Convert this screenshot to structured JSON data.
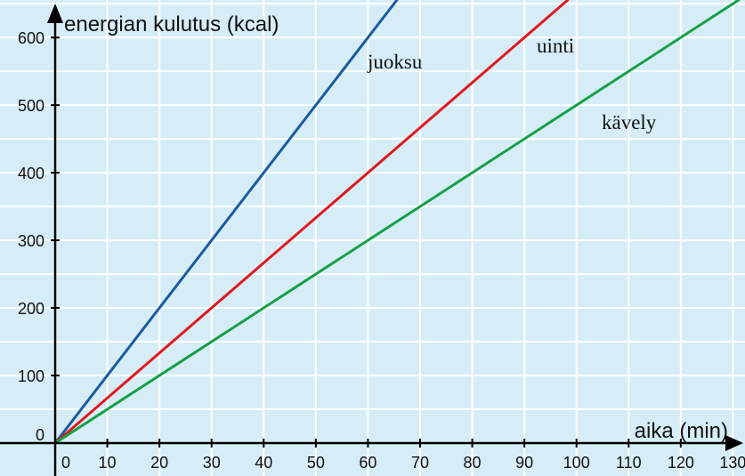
{
  "chart_data": {
    "type": "line",
    "xlabel": "aika (min)",
    "ylabel": "energian kulutus (kcal)",
    "xlim": [
      0,
      130
    ],
    "ylim": [
      0,
      600
    ],
    "x_ticks": [
      0,
      10,
      20,
      30,
      40,
      50,
      60,
      70,
      80,
      90,
      100,
      110,
      120,
      130
    ],
    "y_ticks": [
      0,
      100,
      200,
      300,
      400,
      500,
      600
    ],
    "grid": true,
    "series": [
      {
        "name": "juoksu",
        "color": "#1a5aa0",
        "x": [
          0,
          60
        ],
        "y": [
          0,
          600
        ]
      },
      {
        "name": "uinti",
        "color": "#e0191e",
        "x": [
          0,
          90
        ],
        "y": [
          0,
          600
        ]
      },
      {
        "name": "kävely",
        "color": "#15a045",
        "x": [
          0,
          120
        ],
        "y": [
          0,
          600
        ]
      }
    ],
    "colors": {
      "plot_background": "#d6edf8",
      "grid": "#ffffff",
      "axis": "#000000"
    }
  }
}
